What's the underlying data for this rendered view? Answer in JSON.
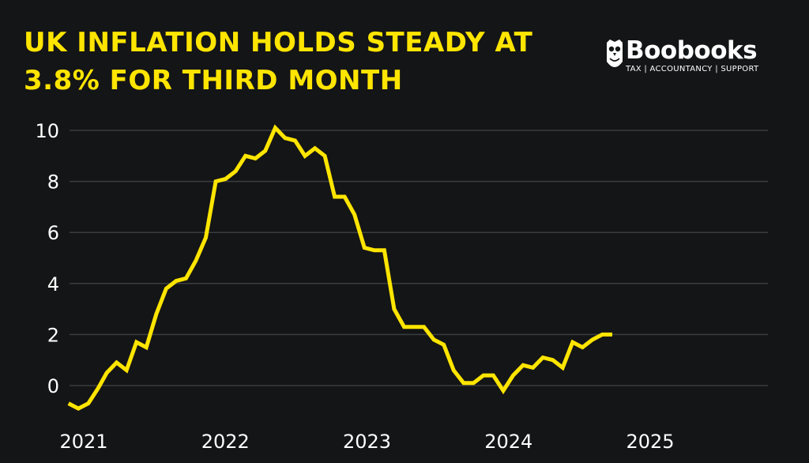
{
  "header": {
    "title_line1": "UK INFLATION HOLDS STEADY AT",
    "title_line2": "3.8% FOR THIRD MONTH"
  },
  "brand": {
    "name": "Boobooks",
    "tagline": "TAX | ACCOUNTANCY | SUPPORT",
    "logo_icon": "owl-icon"
  },
  "colors": {
    "background": "#141516",
    "accent": "#FFE500",
    "grid": "#3a3d40",
    "text": "#ffffff"
  },
  "chart_data": {
    "type": "line",
    "title": "UK INFLATION HOLDS STEADY AT 3.8% FOR THIRD MONTH",
    "xlabel": "",
    "ylabel": "",
    "ylim": [
      -1,
      10.5
    ],
    "yticks": [
      0,
      2,
      4,
      6,
      8,
      10
    ],
    "xtick_labels": [
      {
        "label": "2021",
        "x": 2021.0
      },
      {
        "label": "2022",
        "x": 2022.0
      },
      {
        "label": "2023",
        "x": 2023.0
      },
      {
        "label": "2024",
        "x": 2024.0
      },
      {
        "label": "2025",
        "x": 2025.0
      }
    ],
    "xlim": [
      2020.9,
      2025.5
    ],
    "grid": true,
    "legend": "none",
    "series": [
      {
        "color": "#FFE500",
        "points": [
          [
            2020.92,
            -0.7
          ],
          [
            2020.99,
            -0.9
          ],
          [
            2021.06,
            -0.7
          ],
          [
            2021.13,
            -0.1
          ],
          [
            2021.19,
            0.5
          ],
          [
            2021.26,
            0.9
          ],
          [
            2021.33,
            0.6
          ],
          [
            2021.4,
            1.7
          ],
          [
            2021.47,
            1.5
          ],
          [
            2021.54,
            2.8
          ],
          [
            2021.61,
            3.8
          ],
          [
            2021.68,
            4.1
          ],
          [
            2021.75,
            4.2
          ],
          [
            2021.82,
            4.9
          ],
          [
            2021.89,
            5.8
          ],
          [
            2021.96,
            8.0
          ],
          [
            2022.03,
            8.1
          ],
          [
            2022.1,
            8.4
          ],
          [
            2022.17,
            9.0
          ],
          [
            2022.24,
            8.9
          ],
          [
            2022.31,
            9.2
          ],
          [
            2022.38,
            10.1
          ],
          [
            2022.45,
            9.7
          ],
          [
            2022.52,
            9.6
          ],
          [
            2022.59,
            9.0
          ],
          [
            2022.66,
            9.3
          ],
          [
            2022.73,
            9.0
          ],
          [
            2022.8,
            7.4
          ],
          [
            2022.87,
            7.4
          ],
          [
            2022.94,
            6.7
          ],
          [
            2023.01,
            5.4
          ],
          [
            2023.08,
            5.3
          ],
          [
            2023.15,
            5.3
          ],
          [
            2023.22,
            3.0
          ],
          [
            2023.29,
            2.3
          ],
          [
            2023.36,
            2.3
          ],
          [
            2023.43,
            2.3
          ],
          [
            2023.5,
            1.8
          ],
          [
            2023.57,
            1.6
          ],
          [
            2023.64,
            0.6
          ],
          [
            2023.71,
            0.1
          ],
          [
            2023.78,
            0.1
          ],
          [
            2023.85,
            0.4
          ],
          [
            2023.92,
            0.4
          ],
          [
            2023.99,
            -0.2
          ],
          [
            2024.06,
            0.4
          ],
          [
            2024.13,
            0.8
          ],
          [
            2024.2,
            0.7
          ],
          [
            2024.27,
            1.1
          ],
          [
            2024.34,
            1.0
          ],
          [
            2024.41,
            0.7
          ],
          [
            2024.48,
            1.7
          ],
          [
            2024.55,
            1.5
          ],
          [
            2024.62,
            1.8
          ],
          [
            2024.69,
            2.0
          ],
          [
            2024.76,
            2.0
          ]
        ]
      }
    ]
  }
}
